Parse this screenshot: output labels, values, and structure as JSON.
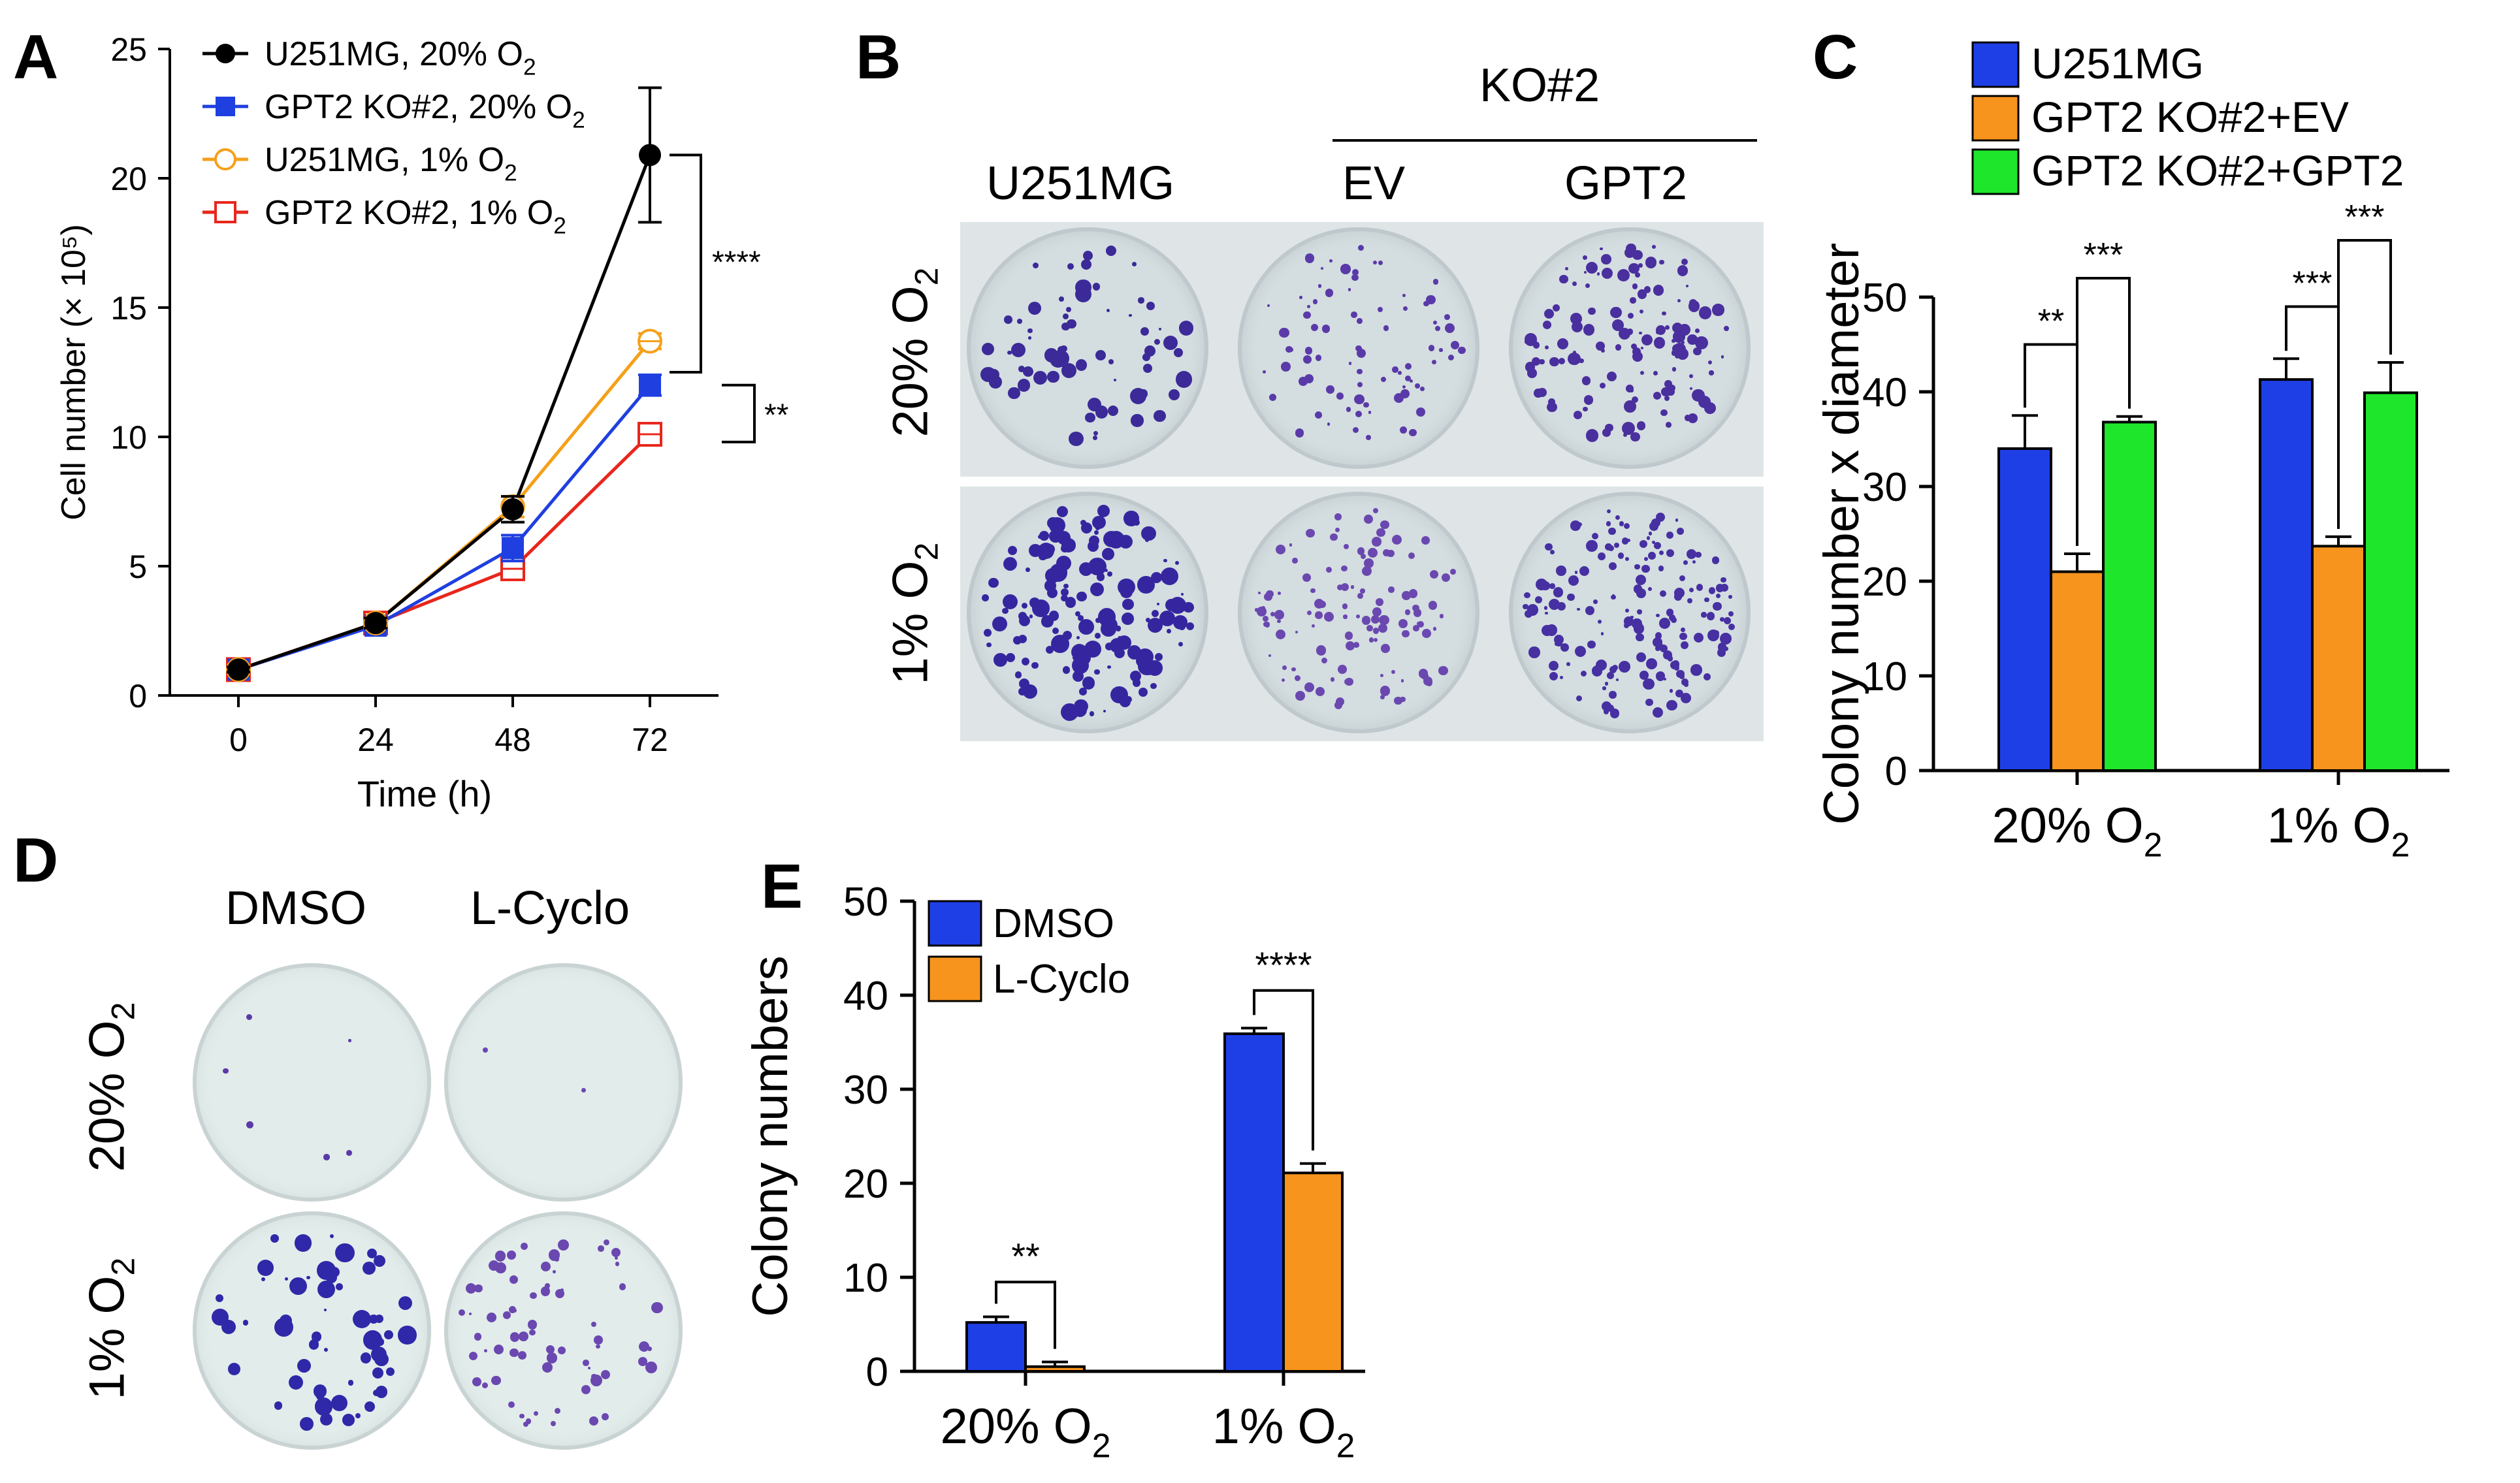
{
  "panels": {
    "A": "A",
    "B": "B",
    "C": "C",
    "D": "D",
    "E": "E"
  },
  "chart_data": [
    {
      "id": "A",
      "type": "line",
      "xlabel": "Time (h)",
      "ylabel": "Cell number (× 10⁵)",
      "x": [
        0,
        24,
        48,
        72
      ],
      "xlim": [
        -12,
        84
      ],
      "ylim": [
        0,
        25
      ],
      "xticks": [
        "0",
        "24",
        "48",
        "72"
      ],
      "yticks": [
        "0",
        "5",
        "10",
        "15",
        "20",
        "25"
      ],
      "series": [
        {
          "name": "U251MG, 20% O",
          "sub": "2",
          "color": "#000000",
          "marker": "filled-circle",
          "values": [
            1.0,
            2.8,
            7.2,
            20.9
          ],
          "errors": [
            0.1,
            0.2,
            0.5,
            2.6
          ]
        },
        {
          "name": "GPT2 KO#2, 20% O",
          "sub": "2",
          "color": "#1f3fe0",
          "marker": "filled-square",
          "values": [
            1.0,
            2.7,
            5.7,
            12.0
          ],
          "errors": [
            0.1,
            0.2,
            0.5,
            0.4
          ]
        },
        {
          "name": "U251MG, 1% O",
          "sub": "2",
          "color": "#f5a01a",
          "marker": "open-circle",
          "values": [
            1.0,
            2.8,
            7.3,
            13.7
          ],
          "errors": [
            0.1,
            0.2,
            0.4,
            0.3
          ]
        },
        {
          "name": "GPT2 KO#2, 1% O",
          "sub": "2",
          "color": "#e8261c",
          "marker": "open-square",
          "values": [
            1.0,
            2.8,
            4.9,
            10.1
          ],
          "errors": [
            0.1,
            0.1,
            0.3,
            0.3
          ]
        }
      ],
      "annotations": [
        "****",
        "**"
      ]
    },
    {
      "id": "C",
      "type": "bar",
      "ylabel": "Colony number x diameter",
      "ylim": [
        0,
        50
      ],
      "yticks": [
        "0",
        "10",
        "20",
        "30",
        "40",
        "50"
      ],
      "categories": [
        {
          "label": "20% O",
          "sub": "2"
        },
        {
          "label": "1% O",
          "sub": "2"
        }
      ],
      "series": [
        {
          "name": "U251MG",
          "color": "#1f3fe6",
          "values": [
            34,
            41.3
          ],
          "errors": [
            3.5,
            2.2
          ]
        },
        {
          "name": "GPT2 KO#2+EV",
          "color": "#f7941d",
          "values": [
            21,
            23.7
          ],
          "errors": [
            1.9,
            1.0
          ]
        },
        {
          "name": "GPT2 KO#2+GPT2",
          "color": "#1ee62b",
          "values": [
            36.8,
            39.9
          ],
          "errors": [
            0.6,
            3.2
          ]
        }
      ],
      "annotations": [
        "**",
        "***",
        "***",
        "***"
      ]
    },
    {
      "id": "E",
      "type": "bar",
      "ylabel": "Colony numbers",
      "ylim": [
        0,
        50
      ],
      "yticks": [
        "0",
        "10",
        "20",
        "30",
        "40",
        "50"
      ],
      "categories": [
        {
          "label": "20% O",
          "sub": "2"
        },
        {
          "label": "1% O",
          "sub": "2"
        }
      ],
      "series": [
        {
          "name": "DMSO",
          "color": "#1f3fe6",
          "values": [
            5.2,
            35.9
          ],
          "errors": [
            0.6,
            0.6
          ]
        },
        {
          "name": "L-Cyclo",
          "color": "#f7941d",
          "values": [
            0.5,
            21.1
          ],
          "errors": [
            0.5,
            1.0
          ]
        }
      ],
      "annotations": [
        "**",
        "****"
      ]
    }
  ],
  "panelB": {
    "group_label": "KO#2",
    "col_labels": [
      "U251MG",
      "EV",
      "GPT2"
    ],
    "row_labels": [
      {
        "label": "20% O",
        "sub": "2"
      },
      {
        "label": "1% O",
        "sub": "2"
      }
    ]
  },
  "panelD": {
    "col_labels": [
      "DMSO",
      "L-Cyclo"
    ],
    "row_labels": [
      {
        "label": "20% O",
        "sub": "2"
      },
      {
        "label": "1% O",
        "sub": "2"
      }
    ]
  }
}
